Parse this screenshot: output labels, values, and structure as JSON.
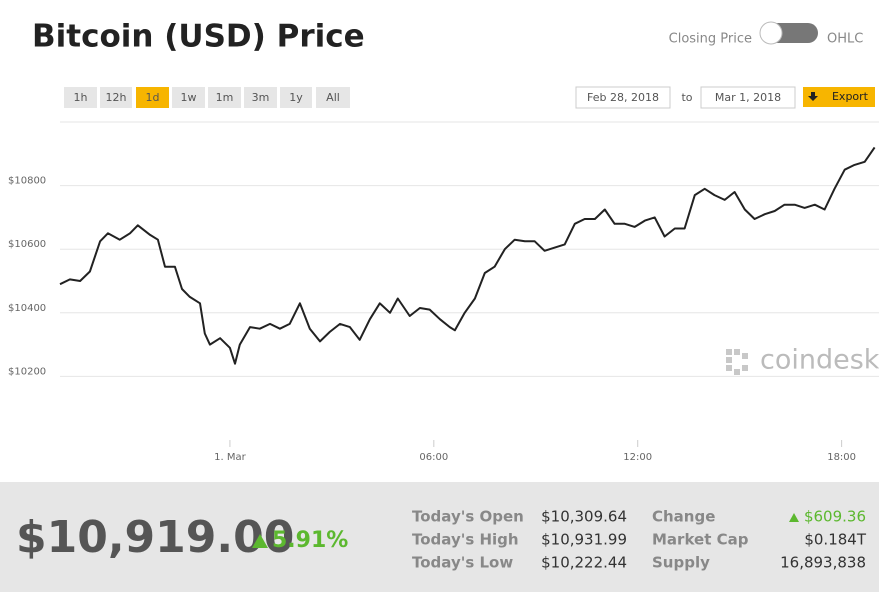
{
  "header": {
    "title": "Bitcoin (USD) Price",
    "toggle_left": "Closing Price",
    "toggle_right": "OHLC"
  },
  "controls": {
    "ranges": [
      "1h",
      "12h",
      "1d",
      "1w",
      "1m",
      "3m",
      "1y",
      "All"
    ],
    "active": "1d",
    "date_from": "Feb 28, 2018",
    "to": "to",
    "date_to": "Mar 1, 2018",
    "export": "Export"
  },
  "watermark": "coindesk",
  "chart_data": {
    "type": "line",
    "color": "#222222",
    "grid": true,
    "x": [
      -5.0,
      -4.71,
      -4.41,
      -4.12,
      -3.82,
      -3.59,
      -3.24,
      -2.94,
      -2.71,
      -2.35,
      -2.12,
      -1.91,
      -1.62,
      -1.41,
      -1.18,
      -0.88,
      -0.74,
      -0.59,
      -0.29,
      0,
      0.15,
      0.29,
      0.59,
      0.88,
      1.18,
      1.47,
      1.76,
      2.06,
      2.35,
      2.65,
      2.94,
      3.24,
      3.53,
      3.82,
      4.12,
      4.41,
      4.71,
      4.94,
      5.29,
      5.59,
      5.88,
      6.18,
      6.47,
      6.62,
      6.91,
      7.21,
      7.5,
      7.79,
      8.09,
      8.38,
      8.68,
      8.97,
      9.26,
      9.56,
      9.85,
      10.15,
      10.44,
      10.74,
      11.03,
      11.32,
      11.62,
      11.91,
      12.21,
      12.5,
      12.79,
      13.09,
      13.38,
      13.68,
      13.97,
      14.26,
      14.56,
      14.85,
      15.15,
      15.44,
      15.74,
      16.03,
      16.32,
      16.62,
      16.91,
      17.21,
      17.5,
      17.79,
      18.09,
      18.38,
      18.68,
      18.97
    ],
    "values": [
      10490,
      10505,
      10500,
      10530,
      10625,
      10650,
      10630,
      10650,
      10675,
      10645,
      10630,
      10545,
      10545,
      10475,
      10450,
      10430,
      10335,
      10300,
      10320,
      10290,
      10240,
      10300,
      10355,
      10350,
      10365,
      10350,
      10365,
      10430,
      10350,
      10310,
      10340,
      10365,
      10355,
      10315,
      10380,
      10430,
      10400,
      10445,
      10390,
      10415,
      10410,
      10380,
      10355,
      10345,
      10400,
      10445,
      10525,
      10545,
      10600,
      10630,
      10625,
      10625,
      10595,
      10605,
      10615,
      10680,
      10695,
      10695,
      10725,
      10680,
      10680,
      10670,
      10690,
      10700,
      10640,
      10665,
      10665,
      10770,
      10790,
      10770,
      10755,
      10780,
      10725,
      10695,
      10710,
      10720,
      10740,
      10740,
      10730,
      10740,
      10725,
      10790,
      10850,
      10865,
      10875,
      10920
    ],
    "xlim": [
      -5,
      19.1
    ],
    "xticks": [
      {
        "value": 0,
        "label": "1. Mar"
      },
      {
        "value": 6,
        "label": "06:00"
      },
      {
        "value": 12,
        "label": "12:00"
      },
      {
        "value": 18,
        "label": "18:00"
      }
    ],
    "ylim": [
      10000,
      11000
    ],
    "yticks": [
      {
        "value": 10200,
        "label": "$10200"
      },
      {
        "value": 10400,
        "label": "$10400"
      },
      {
        "value": 10600,
        "label": "$10600"
      },
      {
        "value": 10800,
        "label": "$10800"
      }
    ]
  },
  "summary": {
    "price": "$10,919.00",
    "change_pct": "5.91%",
    "stats": [
      [
        "Today's Open",
        "$10,309.64",
        "Change",
        "$609.36"
      ],
      [
        "Today's High",
        "$10,931.99",
        "Market Cap",
        "$0.184T"
      ],
      [
        "Today's Low",
        "$10,222.44",
        "Supply",
        "16,893,838"
      ]
    ]
  }
}
